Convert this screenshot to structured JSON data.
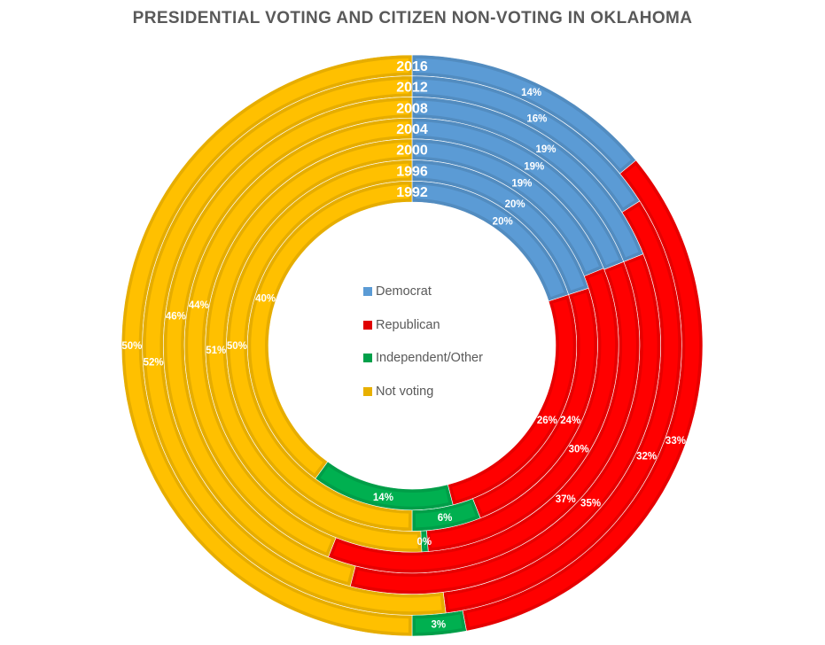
{
  "chart_data": {
    "type": "doughnut",
    "title": "PRESIDENTIAL VOTING AND CITIZEN NON-VOTING IN OKLAHOMA",
    "rings_outer_to_inner": [
      "2016",
      "2012",
      "2008",
      "2004",
      "2000",
      "1996",
      "1992"
    ],
    "start_angle": "top (12 o'clock), clockwise",
    "legend_placement": "center",
    "series": [
      {
        "name": "Democrat",
        "color": "#5B9BD5",
        "values": {
          "2016": 14,
          "2012": 16,
          "2008": 19,
          "2004": 19,
          "2000": 19,
          "1996": 20,
          "1992": 20
        },
        "labels_shown": {
          "2016": "14%",
          "2012": "16%",
          "2008": "19%",
          "2004": "19%",
          "2000": "19%",
          "1996": "20%",
          "1992": "20%"
        }
      },
      {
        "name": "Republican",
        "color": "#FF0000",
        "values": {
          "2016": 33,
          "2012": 32,
          "2008": 35,
          "2004": 37,
          "2000": 30,
          "1996": 24,
          "1992": 26
        },
        "labels_shown": {
          "2016": "33%",
          "2012": "32%",
          "2008": "35%",
          "2004": "37%",
          "2000": "30%",
          "1996": "24%",
          "1992": "26%"
        }
      },
      {
        "name": "Independent/Other",
        "color": "#00B050",
        "values": {
          "2016": 3,
          "2012": 0,
          "2008": 0,
          "2004": 0,
          "2000": 0.5,
          "1996": 6,
          "1992": 14
        },
        "labels_shown": {
          "2016": "3%",
          "2000": "0%",
          "1996": "6%",
          "1992": "14%"
        }
      },
      {
        "name": "Not voting",
        "color": "#FFC000",
        "values": {
          "2016": 50,
          "2012": 52,
          "2008": 46,
          "2004": 44,
          "2000": 51,
          "1996": 50,
          "1992": 40
        },
        "labels_shown": {
          "2016": "50%",
          "2012": "52%",
          "2008": "46%",
          "2004": "44%",
          "2000": "51%",
          "1996": "50%",
          "1992": "40%"
        }
      }
    ]
  },
  "legend": [
    {
      "label": "Democrat",
      "color": "#5B9BD5"
    },
    {
      "label": "Republican",
      "color": "#E00000"
    },
    {
      "label": "Independent/Other",
      "color": "#00A04A"
    },
    {
      "label": "Not voting",
      "color": "#E8B000"
    }
  ]
}
